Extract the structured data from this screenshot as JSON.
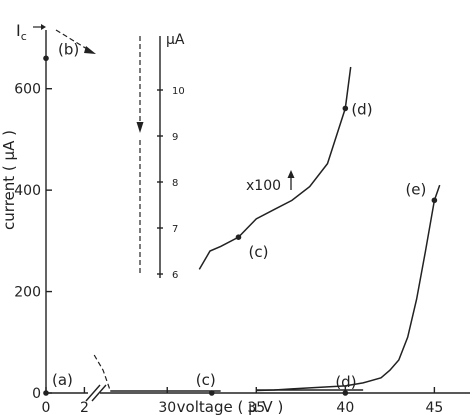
{
  "chart_data": {
    "type": "line",
    "title": "",
    "xlabel": "voltage ( µ V )",
    "ylabel": "current ( µA )",
    "ylim": [
      0,
      700
    ],
    "x_ticks_segment1": [
      "0",
      "2"
    ],
    "x_ticks_segment2": [
      "30",
      "35",
      "40",
      "45"
    ],
    "y_ticks": [
      "0",
      "200",
      "400",
      "600"
    ],
    "xlim_segment1": [
      0,
      2.5
    ],
    "xlim_segment2": [
      26,
      47
    ],
    "inset_label": "x100",
    "inset_axis_unit": "µA",
    "inset_ticks": [
      "10",
      "9",
      "8",
      "7",
      "6"
    ],
    "ic_label": "I",
    "ic_subscript": "c",
    "points": [
      {
        "label": "(a)",
        "x": 0,
        "y": 0
      },
      {
        "label": "(b)",
        "x": 0,
        "y": 660
      },
      {
        "label": "(c)",
        "x": 32.5,
        "y": 0
      },
      {
        "label": "(d)",
        "x": 40,
        "y": 0
      },
      {
        "label": "(e)",
        "x": 45,
        "y": 380
      },
      {
        "label": "(c)",
        "x": 34,
        "y": 6.8,
        "series": "x100"
      },
      {
        "label": "(d)",
        "x": 40,
        "y": 9.6,
        "series": "x100"
      }
    ],
    "series": [
      {
        "name": "",
        "x": [
          35,
          36,
          37,
          38,
          39,
          40,
          41,
          42,
          42.5,
          43,
          43.5,
          44,
          44.5,
          45,
          45.3
        ],
        "y": [
          5,
          6,
          8,
          10,
          12,
          14,
          20,
          30,
          45,
          65,
          110,
          185,
          280,
          380,
          410
        ]
      },
      {
        "name": "",
        "style": "dashed",
        "x": [
          25.9,
          26.4,
          26.8
        ],
        "y": [
          75,
          45,
          5
        ]
      },
      {
        "name": "x100",
        "x": [
          31.8,
          32.4,
          33.0,
          34.0,
          35.0,
          36.0,
          37.0,
          38.0,
          39.0,
          39.5,
          40.0,
          40.3
        ],
        "y": [
          6.1,
          6.5,
          6.6,
          6.8,
          7.2,
          7.4,
          7.6,
          7.9,
          8.4,
          9.0,
          9.6,
          10.5
        ]
      }
    ]
  }
}
